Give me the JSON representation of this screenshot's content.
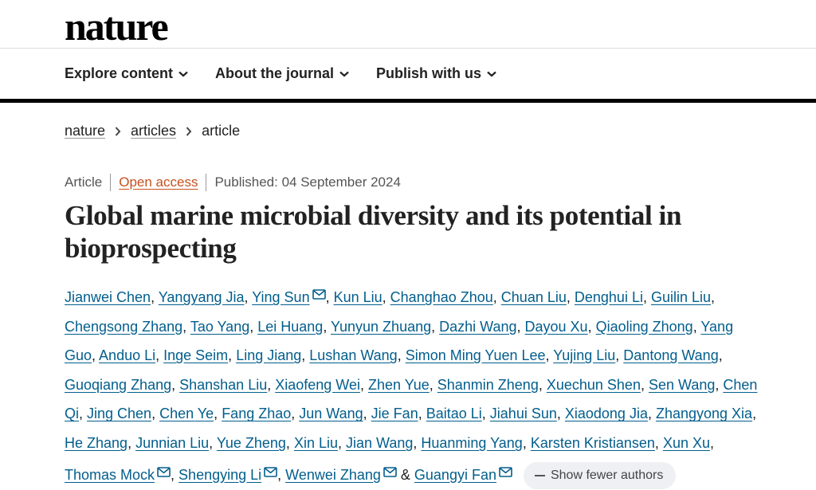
{
  "logo": "nature",
  "nav": [
    "Explore content",
    "About the journal",
    "Publish with us"
  ],
  "breadcrumb": [
    "nature",
    "articles",
    "article"
  ],
  "meta": {
    "type": "Article",
    "access": "Open access",
    "published": "Published: 04 September 2024"
  },
  "title": "Global marine microbial diversity and its potential in bioprospecting",
  "authors": [
    {
      "name": "Jianwei Chen",
      "mail": false
    },
    {
      "name": "Yangyang Jia",
      "mail": false
    },
    {
      "name": "Ying Sun",
      "mail": true
    },
    {
      "name": "Kun Liu",
      "mail": false
    },
    {
      "name": "Changhao Zhou",
      "mail": false
    },
    {
      "name": "Chuan Liu",
      "mail": false
    },
    {
      "name": "Denghui Li",
      "mail": false
    },
    {
      "name": "Guilin Liu",
      "mail": false
    },
    {
      "name": "Chengsong Zhang",
      "mail": false
    },
    {
      "name": "Tao Yang",
      "mail": false
    },
    {
      "name": "Lei Huang",
      "mail": false
    },
    {
      "name": "Yunyun Zhuang",
      "mail": false
    },
    {
      "name": "Dazhi Wang",
      "mail": false
    },
    {
      "name": "Dayou Xu",
      "mail": false
    },
    {
      "name": "Qiaoling Zhong",
      "mail": false
    },
    {
      "name": "Yang Guo",
      "mail": false
    },
    {
      "name": "Anduo Li",
      "mail": false
    },
    {
      "name": "Inge Seim",
      "mail": false
    },
    {
      "name": "Ling Jiang",
      "mail": false
    },
    {
      "name": "Lushan Wang",
      "mail": false
    },
    {
      "name": "Simon Ming Yuen Lee",
      "mail": false
    },
    {
      "name": "Yujing Liu",
      "mail": false
    },
    {
      "name": "Dantong Wang",
      "mail": false
    },
    {
      "name": "Guoqiang Zhang",
      "mail": false
    },
    {
      "name": "Shanshan Liu",
      "mail": false
    },
    {
      "name": "Xiaofeng Wei",
      "mail": false
    },
    {
      "name": "Zhen Yue",
      "mail": false
    },
    {
      "name": "Shanmin Zheng",
      "mail": false
    },
    {
      "name": "Xuechun Shen",
      "mail": false
    },
    {
      "name": "Sen Wang",
      "mail": false
    },
    {
      "name": "Chen Qi",
      "mail": false
    },
    {
      "name": "Jing Chen",
      "mail": false
    },
    {
      "name": "Chen Ye",
      "mail": false
    },
    {
      "name": "Fang Zhao",
      "mail": false
    },
    {
      "name": "Jun Wang",
      "mail": false
    },
    {
      "name": "Jie Fan",
      "mail": false
    },
    {
      "name": "Baitao Li",
      "mail": false
    },
    {
      "name": "Jiahui Sun",
      "mail": false
    },
    {
      "name": "Xiaodong Jia",
      "mail": false
    },
    {
      "name": "Zhangyong Xia",
      "mail": false
    },
    {
      "name": "He Zhang",
      "mail": false
    },
    {
      "name": "Junnian Liu",
      "mail": false
    },
    {
      "name": "Yue Zheng",
      "mail": false
    },
    {
      "name": "Xin Liu",
      "mail": false
    },
    {
      "name": "Jian Wang",
      "mail": false
    },
    {
      "name": "Huanming Yang",
      "mail": false
    },
    {
      "name": "Karsten Kristiansen",
      "mail": false
    },
    {
      "name": "Xun Xu",
      "mail": false
    },
    {
      "name": "Thomas Mock",
      "mail": true
    },
    {
      "name": "Shengying Li",
      "mail": true
    },
    {
      "name": "Wenwei Zhang",
      "mail": true
    },
    {
      "name": "Guangyi Fan",
      "mail": true
    }
  ],
  "show_fewer": "Show fewer authors",
  "colors": {
    "link": "#025e8d",
    "open_access": "#c7511f",
    "text": "#222222"
  }
}
